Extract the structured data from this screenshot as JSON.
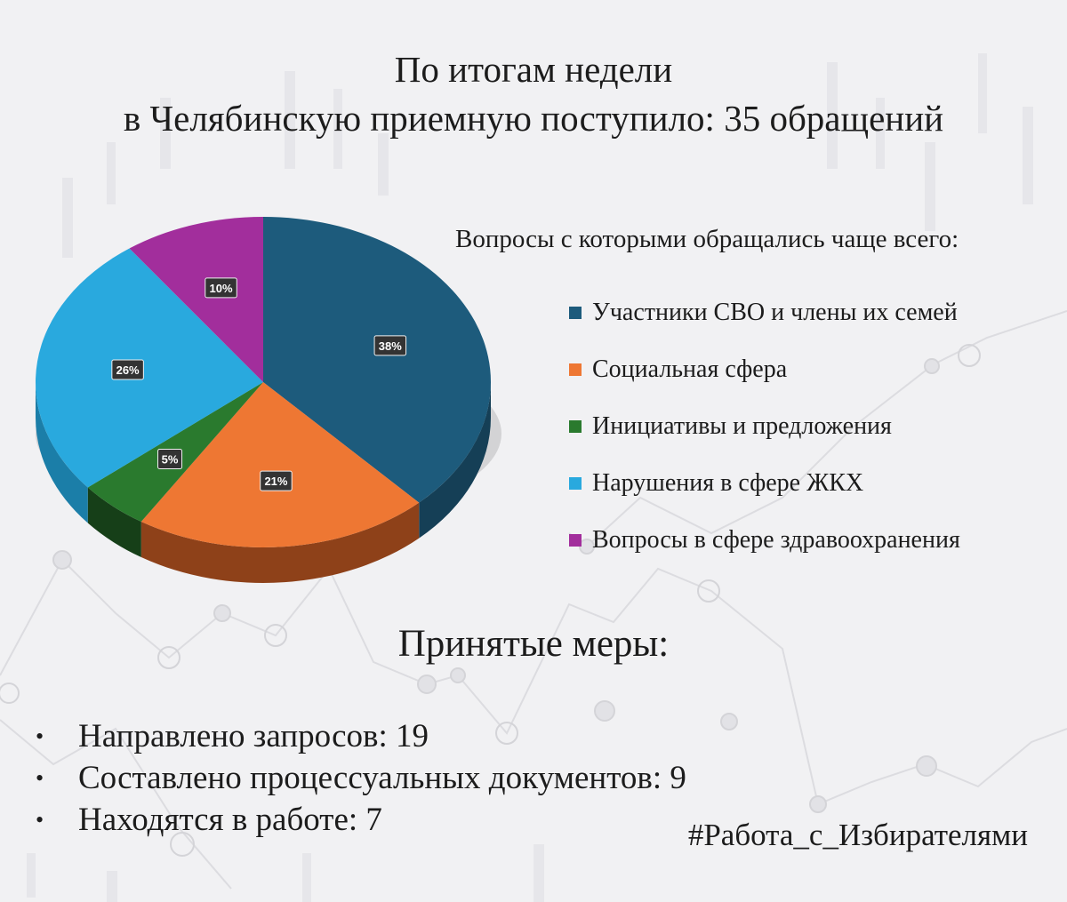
{
  "header": {
    "line1": "По итогам недели",
    "line2": "в Челябинскую приемную поступило: 35 обращений"
  },
  "legend": {
    "title": "Вопросы с которыми обращались чаще всего:",
    "position": "right"
  },
  "chart_data": {
    "type": "pie",
    "style": "3d",
    "categories": [
      "Участники СВО и члены их семей",
      "Социальная сфера",
      "Инициативы и предложения",
      "Нарушения в сфере ЖКХ",
      "Вопросы в сфере здравоохранения"
    ],
    "values": [
      38,
      21,
      5,
      26,
      10
    ],
    "labels": [
      "38%",
      "21%",
      "5%",
      "26%",
      "10%"
    ],
    "colors": [
      "#1d5b7c",
      "#ee7733",
      "#2a7a2e",
      "#29a9de",
      "#a22e9c"
    ],
    "side_colors": [
      "#153f56",
      "#8e4119",
      "#163f18",
      "#1b7ea8",
      "#6b1c66"
    ]
  },
  "measures": {
    "title": "Принятые меры:",
    "bullet": "•",
    "items": [
      "Направлено запросов:  19",
      "Составлено процессуальных документов: 9",
      "Находятся в работе: 7"
    ]
  },
  "hashtag": "#Работа_с_Избирателями"
}
